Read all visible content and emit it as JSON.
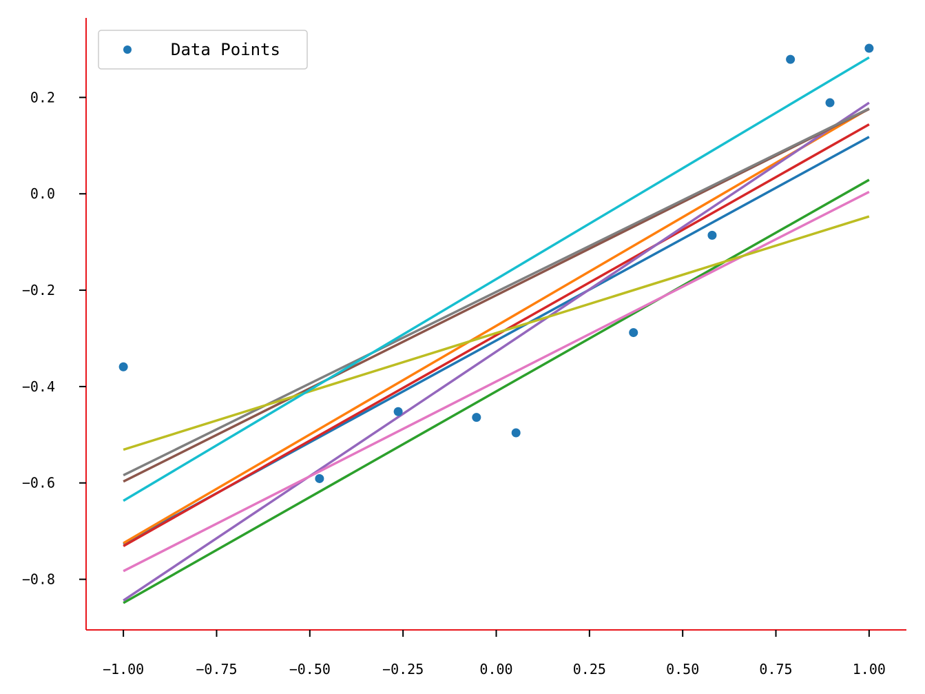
{
  "chart_data": {
    "type": "scatter",
    "xlim": [
      -1.1,
      1.1
    ],
    "ylim": [
      -0.905,
      0.365
    ],
    "x_ticks": [
      -1.0,
      -0.75,
      -0.5,
      -0.25,
      0.0,
      0.25,
      0.5,
      0.75,
      1.0
    ],
    "x_tick_labels": [
      "−1.00",
      "−0.75",
      "−0.50",
      "−0.25",
      "0.00",
      "0.25",
      "0.50",
      "0.75",
      "1.00"
    ],
    "y_ticks": [
      -0.8,
      -0.6,
      -0.4,
      -0.2,
      0.0,
      0.2
    ],
    "y_tick_labels": [
      "−0.8",
      "−0.6",
      "−0.4",
      "−0.2",
      "0.0",
      "0.2"
    ],
    "grid": false,
    "legend": {
      "position": "top-left",
      "entries": [
        "Data Points"
      ]
    },
    "axis_color": "#e8141a",
    "points": {
      "name": "Data Points",
      "color": "#1f77b4",
      "x": [
        -1.0,
        -0.474,
        -0.263,
        -0.053,
        0.053,
        0.368,
        0.579,
        0.789,
        0.895,
        1.0
      ],
      "y": [
        -0.359,
        -0.591,
        -0.452,
        -0.464,
        -0.496,
        -0.288,
        -0.086,
        0.279,
        0.189,
        0.302
      ]
    },
    "lines": [
      {
        "color": "#1f77b4",
        "x": [
          -1.0,
          1.0
        ],
        "y": [
          -0.727,
          0.118
        ]
      },
      {
        "color": "#ff7f0e",
        "x": [
          -1.0,
          1.0
        ],
        "y": [
          -0.725,
          0.177
        ]
      },
      {
        "color": "#2ca02c",
        "x": [
          -1.0,
          1.0
        ],
        "y": [
          -0.849,
          0.029
        ]
      },
      {
        "color": "#d62728",
        "x": [
          -1.0,
          1.0
        ],
        "y": [
          -0.731,
          0.144
        ]
      },
      {
        "color": "#9467bd",
        "x": [
          -1.0,
          1.0
        ],
        "y": [
          -0.844,
          0.189
        ]
      },
      {
        "color": "#8c564b",
        "x": [
          -1.0,
          1.0
        ],
        "y": [
          -0.597,
          0.176
        ]
      },
      {
        "color": "#e377c2",
        "x": [
          -1.0,
          1.0
        ],
        "y": [
          -0.783,
          0.004
        ]
      },
      {
        "color": "#7f7f7f",
        "x": [
          -1.0,
          1.0
        ],
        "y": [
          -0.584,
          0.177
        ]
      },
      {
        "color": "#bcbd22",
        "x": [
          -1.0,
          1.0
        ],
        "y": [
          -0.531,
          -0.047
        ]
      },
      {
        "color": "#17becf",
        "x": [
          -1.0,
          1.0
        ],
        "y": [
          -0.637,
          0.283
        ]
      }
    ]
  }
}
